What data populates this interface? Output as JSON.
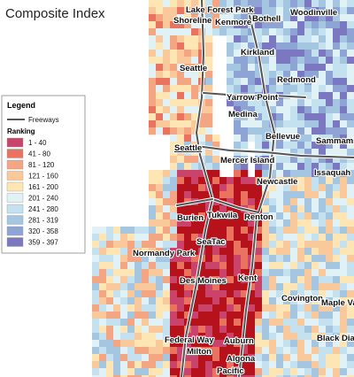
{
  "title": "Composite Index",
  "legend": {
    "title": "Legend",
    "freeways": "Freeways",
    "ranking_title": "Ranking",
    "classes": [
      {
        "label": "1 - 40",
        "color": "#c9436a"
      },
      {
        "label": "41 - 80",
        "color": "#e9735f"
      },
      {
        "label": "81 - 120",
        "color": "#f4a582"
      },
      {
        "label": "121 - 160",
        "color": "#f9c99b"
      },
      {
        "label": "161 - 200",
        "color": "#fde5b4"
      },
      {
        "label": "201 - 240",
        "color": "#e1f2f7"
      },
      {
        "label": "241 - 280",
        "color": "#c3e1ee"
      },
      {
        "label": "281 - 319",
        "color": "#a4c6e0"
      },
      {
        "label": "320 - 358",
        "color": "#8ea4d5"
      },
      {
        "label": "359 - 397",
        "color": "#7b77c0"
      }
    ]
  },
  "map_colors": {
    "core": "#b5121b",
    "water": "#ffffff",
    "freeway": "#555555"
  },
  "places": [
    "Lake Forest Park",
    "Shoreline",
    "Kenmore",
    "Bothell",
    "Woodinville",
    "Kirkland",
    "Seattle",
    "Redmond",
    "Yarrow Point",
    "Medina",
    "Bellevue",
    "Sammamish",
    "Seattle",
    "Mercer Island",
    "Issaquah",
    "Newcastle",
    "Burien",
    "Tukwila",
    "Renton",
    "SeaTac",
    "Normandy Park",
    "Des Moines",
    "Kent",
    "Covington",
    "Maple Valley",
    "Federal Way",
    "Auburn",
    "Black Diamond",
    "Milton",
    "Algona",
    "Pacific"
  ]
}
